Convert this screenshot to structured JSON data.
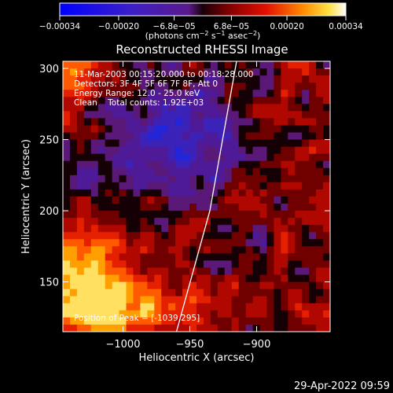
{
  "chart_data": {
    "type": "heatmap",
    "title": "Reconstructed RHESSI Image",
    "xlabel": "Heliocentric X (arcsec)",
    "ylabel": "Heliocentric Y (arcsec)",
    "xlim": [
      -1045,
      -845
    ],
    "ylim": [
      115,
      305
    ],
    "x_ticks": [
      -1000,
      -950,
      -900
    ],
    "x_tick_labels": [
      "−1000",
      "−950",
      "−900"
    ],
    "y_ticks": [
      150,
      200,
      250,
      300
    ],
    "y_tick_labels": [
      "150",
      "200",
      "250",
      "300"
    ],
    "colorbar": {
      "min": -0.00034,
      "max": 0.00034,
      "ticks": [
        -0.00034,
        -0.0002,
        -6.8e-05,
        6.8e-05,
        0.0002,
        0.00034
      ],
      "tick_labels": [
        "−0.00034",
        "−0.00020",
        "−6.8e−05",
        "6.8e−05",
        "0.00020",
        "0.00034"
      ],
      "unit_text": "(photons cm",
      "unit_exp1": "−2",
      "unit_mid": " s",
      "unit_exp2": "−1",
      "unit_mid2": " asec",
      "unit_exp3": "−2",
      "unit_end": ")"
    },
    "info_lines": [
      "11-Mar-2003 00:15:20.000 to 00:18:28.000",
      "Detectors: 3F 4F 5F 6F 7F 8F, Att 0",
      "Energy Range: 12.0 - 25.0 keV",
      "Clean    Total counts: 1.92E+03"
    ],
    "peak_label": "Position of Peak = [-1039,295]",
    "limb_line": {
      "x": [
        -960,
        -935,
        -915
      ],
      "y": [
        115,
        200,
        305
      ]
    },
    "peak_position": [
      -1039,
      295
    ]
  },
  "footer": {
    "timestamp": "29-Apr-2022 09:59"
  }
}
